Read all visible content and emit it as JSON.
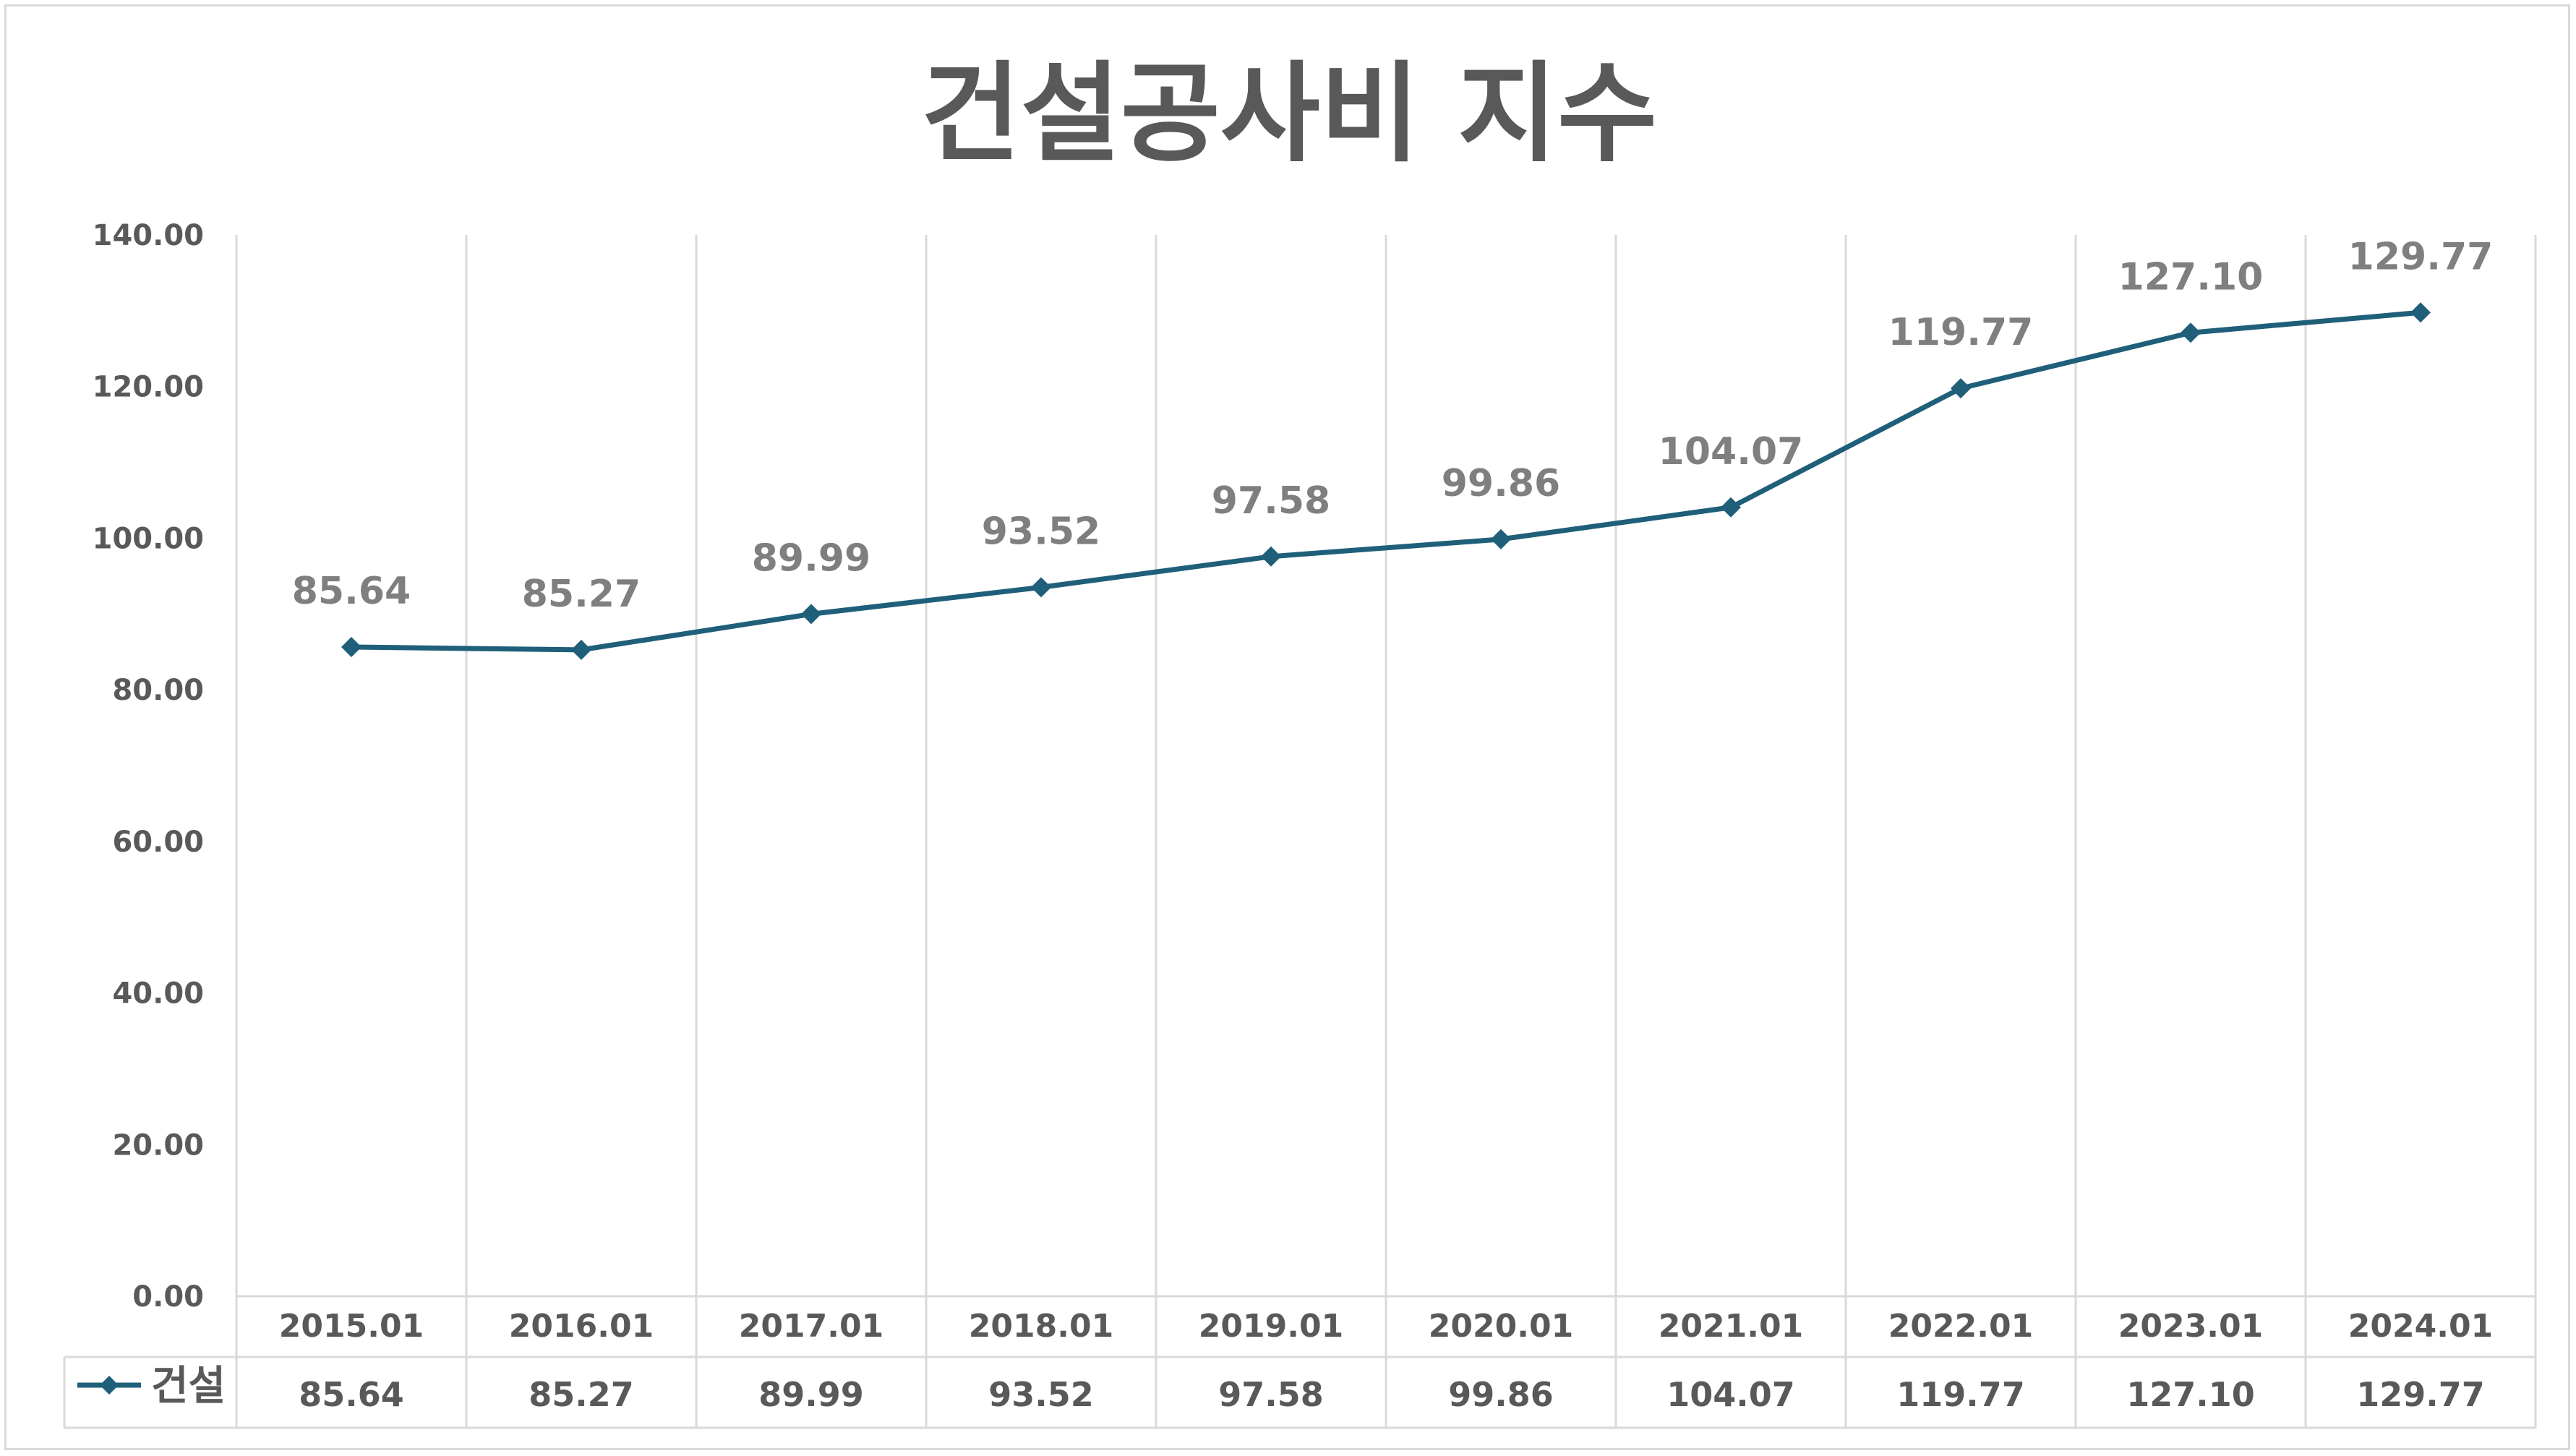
{
  "chart_data": {
    "type": "line",
    "title": "건설공사비 지수",
    "xlabel": "",
    "ylabel": "",
    "categories": [
      "2015.01",
      "2016.01",
      "2017.01",
      "2018.01",
      "2019.01",
      "2020.01",
      "2021.01",
      "2022.01",
      "2023.01",
      "2024.01"
    ],
    "series": [
      {
        "name": "건설",
        "values": [
          85.64,
          85.27,
          89.99,
          93.52,
          97.58,
          99.86,
          104.07,
          119.77,
          127.1,
          129.77
        ],
        "color": "#1f5f7a"
      }
    ],
    "ylim": [
      0,
      140
    ],
    "y_ticks": [
      "0.00",
      "20.00",
      "40.00",
      "60.00",
      "80.00",
      "100.00",
      "120.00",
      "140.00"
    ],
    "data_labels": [
      "85.64",
      "85.27",
      "89.99",
      "93.52",
      "97.58",
      "99.86",
      "104.07",
      "119.77",
      "127.10",
      "129.77"
    ],
    "table_values": [
      "85.64",
      "85.27",
      "89.99",
      "93.52",
      "97.58",
      "99.86",
      "104.07",
      "119.77",
      "127.10",
      "129.77"
    ],
    "grid": "vertical",
    "legend": "in data table (bottom-left)",
    "colors": {
      "line": "#1f5f7a",
      "text": "#595959",
      "label": "#7f7f7f",
      "grid": "#d9d9d9"
    }
  }
}
